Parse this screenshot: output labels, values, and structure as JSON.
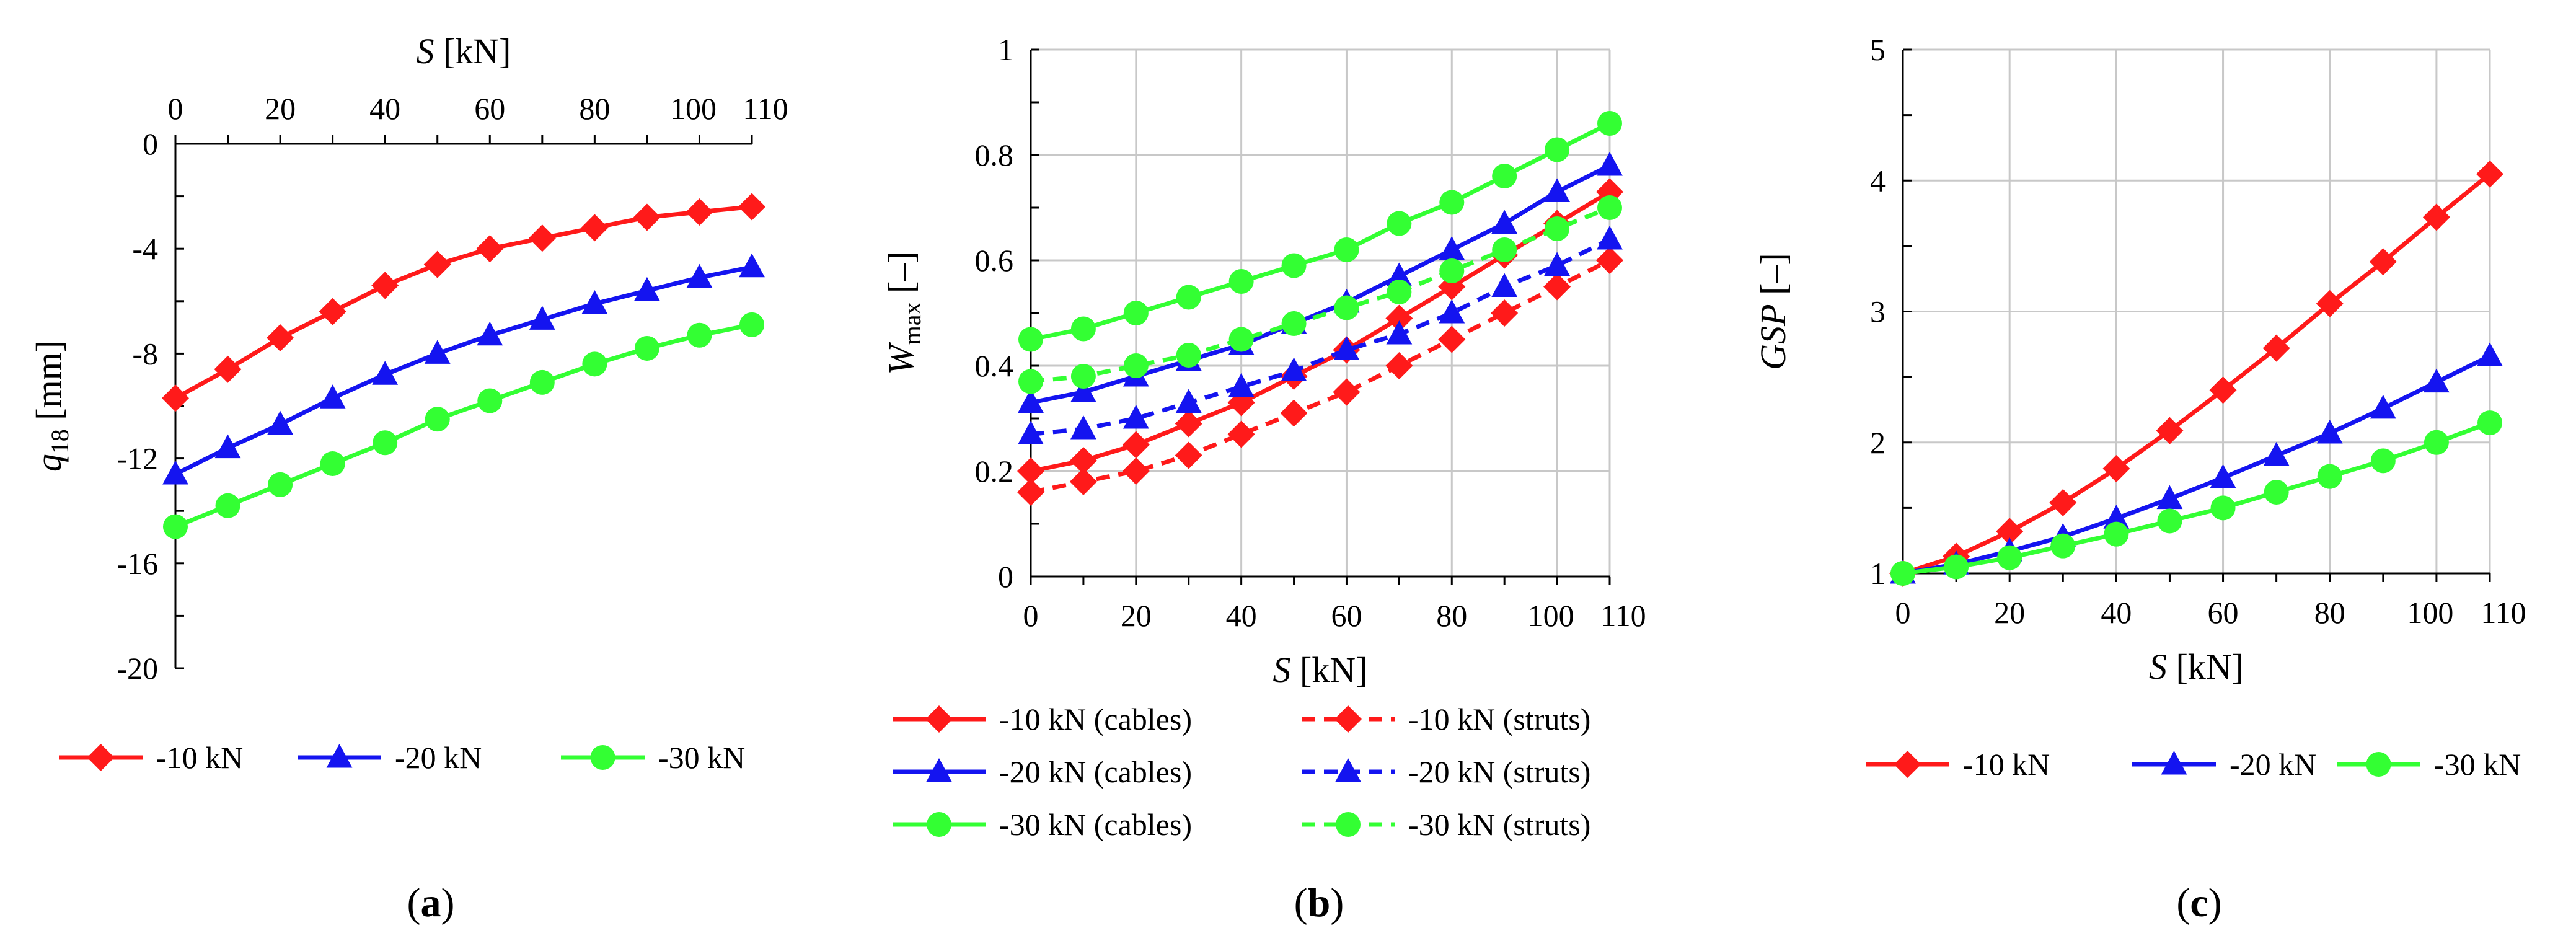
{
  "colors": {
    "red": "#ff1a1a",
    "blue": "#1414f0",
    "green": "#33ff33"
  },
  "chart_data": [
    {
      "id": "a",
      "type": "line",
      "panel_label": "a",
      "x_position": "top",
      "xlabel": "S [kN]",
      "xlabel_var": "S",
      "xlabel_unit": " [kN]",
      "ylabel": "q18 [mm]",
      "ylabel_var": "q",
      "ylabel_sub": "18",
      "ylabel_unit": " [mm]",
      "xlim": [
        0,
        110
      ],
      "ylim": [
        -20,
        0
      ],
      "grid": false,
      "xticks": [
        0,
        20,
        40,
        60,
        80,
        100,
        110
      ],
      "xtick_labels": [
        "0",
        "20",
        "40",
        "60",
        "80",
        "100",
        "110"
      ],
      "yticks": [
        0,
        -4,
        -8,
        -12,
        -16,
        -20
      ],
      "ytick_labels": [
        "0",
        "-4",
        "-8",
        "-12",
        "-16",
        "-20"
      ],
      "x": [
        0,
        10,
        20,
        30,
        40,
        50,
        60,
        70,
        80,
        90,
        100,
        110
      ],
      "series": [
        {
          "name": "-10 kN",
          "legend": "-10 kN",
          "color": "red",
          "marker": "diamond",
          "dashed": false,
          "values": [
            -9.7,
            -8.6,
            -7.4,
            -6.4,
            -5.4,
            -4.6,
            -4.0,
            -3.6,
            -3.2,
            -2.8,
            -2.6,
            -2.4
          ]
        },
        {
          "name": "-20 kN",
          "legend": "-20 kN",
          "color": "blue",
          "marker": "triangle",
          "dashed": false,
          "values": [
            -12.6,
            -11.6,
            -10.7,
            -9.7,
            -8.8,
            -8.0,
            -7.3,
            -6.7,
            -6.1,
            -5.6,
            -5.1,
            -4.7
          ]
        },
        {
          "name": "-30 kN",
          "legend": "-30 kN",
          "color": "green",
          "marker": "circle",
          "dashed": false,
          "values": [
            -14.6,
            -13.8,
            -13.0,
            -12.2,
            -11.4,
            -10.5,
            -9.8,
            -9.1,
            -8.4,
            -7.8,
            -7.3,
            -6.9
          ]
        }
      ]
    },
    {
      "id": "b",
      "type": "line",
      "panel_label": "b",
      "x_position": "bottom",
      "xlabel": "S [kN]",
      "xlabel_var": "S",
      "xlabel_unit": " [kN]",
      "ylabel": "Wmax [–]",
      "ylabel_var": "W",
      "ylabel_sub": "max",
      "ylabel_unit": " [–]",
      "xlim": [
        0,
        110
      ],
      "ylim": [
        0,
        1
      ],
      "grid": true,
      "xticks": [
        0,
        20,
        40,
        60,
        80,
        100,
        110
      ],
      "xtick_labels": [
        "0",
        "20",
        "40",
        "60",
        "80",
        "100",
        "110"
      ],
      "yticks": [
        0,
        0.2,
        0.4,
        0.6,
        0.8,
        1
      ],
      "ytick_labels": [
        "0",
        "0.2",
        "0.4",
        "0.6",
        "0.8",
        "1"
      ],
      "x": [
        0,
        10,
        20,
        30,
        40,
        50,
        60,
        70,
        80,
        90,
        100,
        110
      ],
      "series": [
        {
          "name": "-10 kN (cables)",
          "legend": "-10 kN (cables)",
          "color": "red",
          "marker": "diamond",
          "dashed": false,
          "values": [
            0.2,
            0.22,
            0.25,
            0.29,
            0.33,
            0.38,
            0.43,
            0.49,
            0.55,
            0.61,
            0.67,
            0.73
          ]
        },
        {
          "name": "-10 kN (struts)",
          "legend": "-10 kN (struts)",
          "color": "red",
          "marker": "diamond",
          "dashed": true,
          "values": [
            0.16,
            0.18,
            0.2,
            0.23,
            0.27,
            0.31,
            0.35,
            0.4,
            0.45,
            0.5,
            0.55,
            0.6
          ]
        },
        {
          "name": "-20 kN (cables)",
          "legend": "-20 kN (cables)",
          "color": "blue",
          "marker": "triangle",
          "dashed": false,
          "values": [
            0.33,
            0.35,
            0.38,
            0.41,
            0.44,
            0.48,
            0.52,
            0.57,
            0.62,
            0.67,
            0.73,
            0.78
          ]
        },
        {
          "name": "-20 kN (struts)",
          "legend": "-20 kN (struts)",
          "color": "blue",
          "marker": "triangle",
          "dashed": true,
          "values": [
            0.27,
            0.28,
            0.3,
            0.33,
            0.36,
            0.39,
            0.43,
            0.46,
            0.5,
            0.55,
            0.59,
            0.64
          ]
        },
        {
          "name": "-30 kN (cables)",
          "legend": "-30 kN (cables)",
          "color": "green",
          "marker": "circle",
          "dashed": false,
          "values": [
            0.45,
            0.47,
            0.5,
            0.53,
            0.56,
            0.59,
            0.62,
            0.67,
            0.71,
            0.76,
            0.81,
            0.86
          ]
        },
        {
          "name": "-30 kN (struts)",
          "legend": "-30 kN (struts)",
          "color": "green",
          "marker": "circle",
          "dashed": true,
          "values": [
            0.37,
            0.38,
            0.4,
            0.42,
            0.45,
            0.48,
            0.51,
            0.54,
            0.58,
            0.62,
            0.66,
            0.7
          ]
        }
      ]
    },
    {
      "id": "c",
      "type": "line",
      "panel_label": "c",
      "x_position": "bottom",
      "xlabel": "S [kN]",
      "xlabel_var": "S",
      "xlabel_unit": " [kN]",
      "ylabel": "GSP [–]",
      "ylabel_var": "GSP",
      "ylabel_sub": "",
      "ylabel_unit": " [–]",
      "xlim": [
        0,
        110
      ],
      "ylim": [
        1,
        5
      ],
      "grid": true,
      "xticks": [
        0,
        20,
        40,
        60,
        80,
        100,
        110
      ],
      "xtick_labels": [
        "0",
        "20",
        "40",
        "60",
        "80",
        "100",
        "110"
      ],
      "yticks": [
        1,
        2,
        3,
        4,
        5
      ],
      "ytick_labels": [
        "1",
        "2",
        "3",
        "4",
        "5"
      ],
      "x": [
        0,
        10,
        20,
        30,
        40,
        50,
        60,
        70,
        80,
        90,
        100,
        110
      ],
      "series": [
        {
          "name": "-10 kN",
          "legend": "-10 kN",
          "color": "red",
          "marker": "diamond",
          "dashed": false,
          "values": [
            1.0,
            1.13,
            1.32,
            1.54,
            1.8,
            2.09,
            2.4,
            2.72,
            3.06,
            3.38,
            3.72,
            4.05
          ]
        },
        {
          "name": "-20 kN",
          "legend": "-20 kN",
          "color": "blue",
          "marker": "triangle",
          "dashed": false,
          "values": [
            1.0,
            1.07,
            1.17,
            1.28,
            1.42,
            1.57,
            1.73,
            1.9,
            2.07,
            2.26,
            2.46,
            2.66
          ]
        },
        {
          "name": "-30 kN",
          "legend": "-30 kN",
          "color": "green",
          "marker": "circle",
          "dashed": false,
          "values": [
            1.0,
            1.05,
            1.12,
            1.21,
            1.3,
            1.4,
            1.5,
            1.62,
            1.74,
            1.86,
            2.0,
            2.15
          ]
        }
      ]
    }
  ]
}
